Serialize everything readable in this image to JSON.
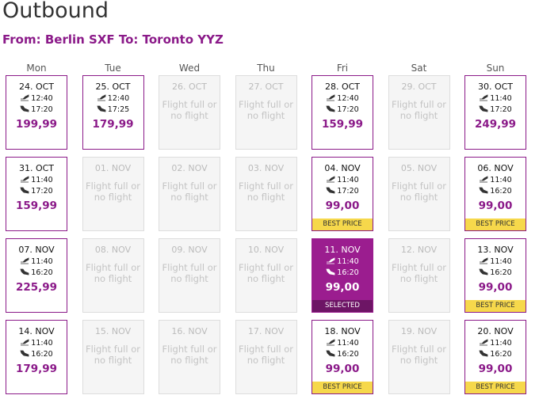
{
  "header": {
    "title": "Outbound",
    "route": "From: Berlin SXF To: Toronto YYZ"
  },
  "weekdays": [
    "Mon",
    "Tue",
    "Wed",
    "Thu",
    "Fri",
    "Sat",
    "Sun"
  ],
  "weeks": [
    [
      {
        "date": "24. OCT",
        "depart": "12:40",
        "arrive": "17:20",
        "price": "199,99"
      },
      {
        "date": "25. OCT",
        "depart": "12:40",
        "arrive": "17:25",
        "price": "179,99"
      },
      {
        "date": "26. OCT",
        "status": "Flight full or no flight"
      },
      {
        "date": "27. OCT",
        "status": "Flight full or no flight"
      },
      {
        "date": "28. OCT",
        "depart": "12:40",
        "arrive": "17:20",
        "price": "159,99"
      },
      {
        "date": "29. OCT",
        "status": "Flight full or no flight"
      },
      {
        "date": "30. OCT",
        "depart": "11:40",
        "arrive": "17:20",
        "price": "249,99"
      }
    ],
    [
      {
        "date": "31. OCT",
        "depart": "11:40",
        "arrive": "17:20",
        "price": "159,99"
      },
      {
        "date": "01. NOV",
        "status": "Flight full or no flight"
      },
      {
        "date": "02. NOV",
        "status": "Flight full or no flight"
      },
      {
        "date": "03. NOV",
        "status": "Flight full or no flight"
      },
      {
        "date": "04. NOV",
        "depart": "11:40",
        "arrive": "17:20",
        "price": "99,00",
        "badge": "BEST PRICE"
      },
      {
        "date": "05. NOV",
        "status": "Flight full or no flight"
      },
      {
        "date": "06. NOV",
        "depart": "11:40",
        "arrive": "16:20",
        "price": "99,00",
        "badge": "BEST PRICE"
      }
    ],
    [
      {
        "date": "07. NOV",
        "depart": "11:40",
        "arrive": "16:20",
        "price": "225,99"
      },
      {
        "date": "08. NOV",
        "status": "Flight full or no flight"
      },
      {
        "date": "09. NOV",
        "status": "Flight full or no flight"
      },
      {
        "date": "10. NOV",
        "status": "Flight full or no flight"
      },
      {
        "date": "11. NOV",
        "depart": "11:40",
        "arrive": "16:20",
        "price": "99,00",
        "badge": "SELECTED",
        "selected": true
      },
      {
        "date": "12. NOV",
        "status": "Flight full or no flight"
      },
      {
        "date": "13. NOV",
        "depart": "11:40",
        "arrive": "16:20",
        "price": "99,00",
        "badge": "BEST PRICE"
      }
    ],
    [
      {
        "date": "14. NOV",
        "depart": "11:40",
        "arrive": "16:20",
        "price": "179,99"
      },
      {
        "date": "15. NOV",
        "status": "Flight full or no flight"
      },
      {
        "date": "16. NOV",
        "status": "Flight full or no flight"
      },
      {
        "date": "17. NOV",
        "status": "Flight full or no flight"
      },
      {
        "date": "18. NOV",
        "depart": "11:40",
        "arrive": "16:20",
        "price": "99,00",
        "badge": "BEST PRICE"
      },
      {
        "date": "19. NOV",
        "status": "Flight full or no flight"
      },
      {
        "date": "20. NOV",
        "depart": "11:40",
        "arrive": "16:20",
        "price": "99,00",
        "badge": "BEST PRICE"
      }
    ]
  ]
}
